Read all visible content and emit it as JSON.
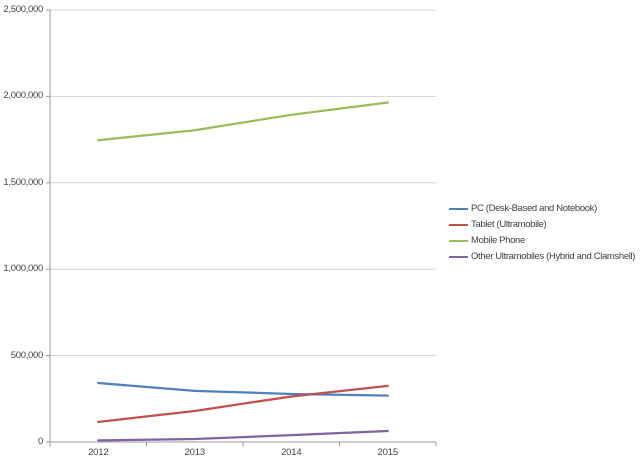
{
  "colors": {
    "background": "#ffffff",
    "gridline": "#d3d3d3",
    "axis": "#9b9b9b",
    "axis_text": "#444444",
    "legend_text": "#3f3f3f"
  },
  "chart_data": {
    "type": "line",
    "title": "",
    "xlabel": "",
    "ylabel": "",
    "x_labels": [
      "2012",
      "2013",
      "2014",
      "2015"
    ],
    "y_ticks": [
      0,
      500000,
      1000000,
      1500000,
      2000000,
      2500000
    ],
    "y_tick_labels": [
      "0",
      "500,000",
      "1,000,000",
      "1,500,000",
      "2,000,000",
      "2,500,000"
    ],
    "ylim": [
      0,
      2500000
    ],
    "grid": true,
    "legend_position": "right",
    "series": [
      {
        "id": "pc",
        "name": "PC (Desk-Based and Notebook)",
        "color": "#4F81BD",
        "values": [
          341263,
          296131,
          278129,
          268491
        ]
      },
      {
        "id": "tablet",
        "name": "Tablet (Ultramobile)",
        "color": "#C0504D",
        "values": [
          116113,
          179531,
          263450,
          324565
        ]
      },
      {
        "id": "mobile-phone",
        "name": "Mobile Phone",
        "color": "#9BBB59",
        "values": [
          1746176,
          1804334,
          1893425,
          1964788
        ]
      },
      {
        "id": "other-ultramobiles",
        "name": "Other Ultramobiles (Hybrid and Clamshell)",
        "color": "#8064A2",
        "values": [
          9344,
          17195,
          39636,
          63835
        ]
      }
    ]
  }
}
